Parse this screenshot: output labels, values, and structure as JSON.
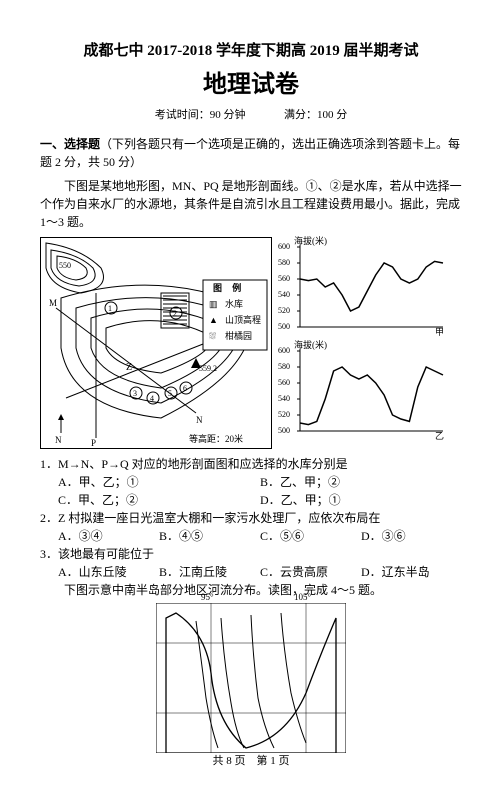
{
  "header": {
    "title_line1": "成都七中 2017-2018 学年度下期高 2019 届半期考试",
    "title_line2": "地理试卷",
    "exam_time": "考试时间：90 分钟",
    "full_score": "满分：100 分"
  },
  "section1": {
    "heading_bold": "一、选择题",
    "heading_rest": "（下列各题只有一个选项是正确的，选出正确选项涂到答题卡上。每题 2 分，共 50 分）",
    "intro": "下图是某地地形图，MN、PQ 是地形剖面线。①、②是水库，若从中选择一个作为自来水厂的水源地，其条件是自流引水且工程建设费用最小。据此，完成 1～3 题。"
  },
  "map_legend": {
    "box_title": "图  例",
    "reservoir": "水库",
    "peak": "山顶高程",
    "orchard": "柑橘园",
    "contour_note": "等高距：20米",
    "peak_value": "559.2"
  },
  "charts": {
    "ylabel": "海拔(米)",
    "yticks": [
      "500",
      "520",
      "540",
      "560",
      "580",
      "600"
    ],
    "chart1": {
      "caption_right": "甲",
      "pathY": [
        560,
        558,
        560,
        550,
        555,
        540,
        520,
        525,
        545,
        565,
        580,
        575,
        560,
        555,
        560,
        575,
        582,
        580
      ]
    },
    "chart2": {
      "caption_right": "乙",
      "pathY": [
        510,
        508,
        512,
        540,
        575,
        580,
        570,
        565,
        570,
        560,
        545,
        520,
        515,
        512,
        555,
        580,
        575,
        570
      ]
    }
  },
  "q1": {
    "stem": "1．M→N、P→Q 对应的地形剖面图和应选择的水库分别是",
    "A": "A．甲、乙；①",
    "B": "B．乙、甲；②",
    "C": "C．甲、乙；②",
    "D": "D．乙、甲；①"
  },
  "q2": {
    "stem": "2．Z 村拟建一座日光温室大棚和一家污水处理厂，应依次布局在",
    "A": "A．③④",
    "B": "B．④⑤",
    "C": "C．⑤⑥",
    "D": "D．③⑥"
  },
  "q3": {
    "stem": "3．该地最有可能位于",
    "A": "A．山东丘陵",
    "B": "B．江南丘陵",
    "C": "C．云贵高原",
    "D": "D．辽东半岛",
    "followup": "下图示意中南半岛部分地区河流分布。读图，完成 4～5 题。"
  },
  "map2": {
    "lon1": "95°",
    "lon2": "105°"
  },
  "footer": "共 8 页　第 1 页"
}
